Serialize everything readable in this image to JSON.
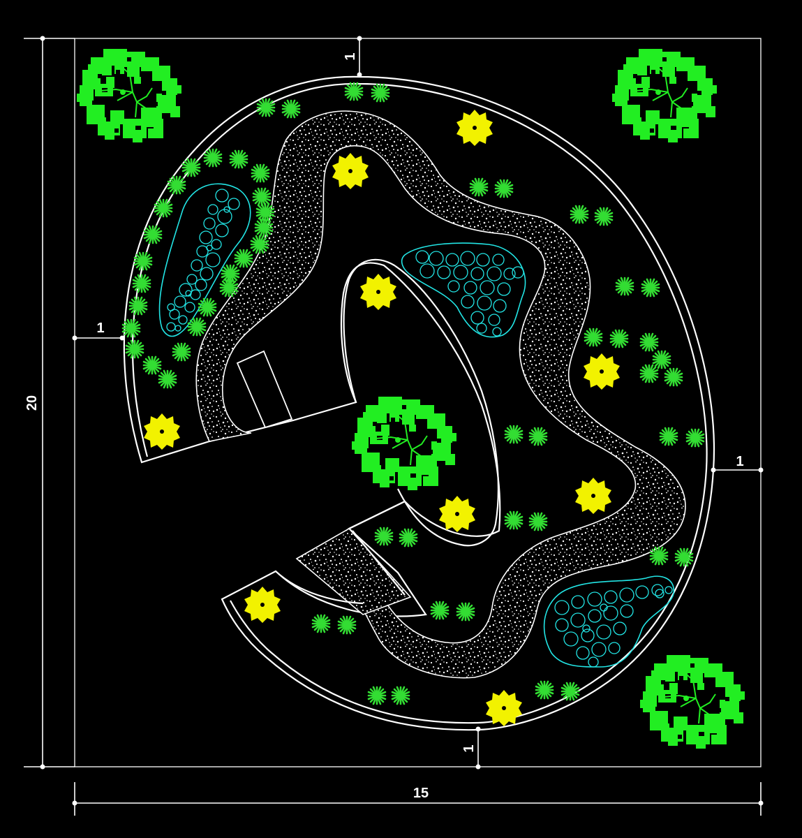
{
  "dimensions": {
    "height_label": "20",
    "width_label": "15",
    "offset_top_label": "1",
    "offset_left_label": "1",
    "offset_right_label": "1",
    "offset_bottom_label": "1"
  },
  "colors": {
    "background": "#000000",
    "linework": "#ffffff",
    "tree_canopy": "#22ee22",
    "shrub": "#33dd33",
    "flower": "#f2f200",
    "stone_cluster": "#22e5e5",
    "gravel_fill": "#000000",
    "gravel_speckle": "#ffffff"
  },
  "symbols": {
    "tree": "tree-icon",
    "shrub": "shrub-icon",
    "flower": "flower-icon",
    "stone_cluster": "stone-cluster-icon"
  }
}
